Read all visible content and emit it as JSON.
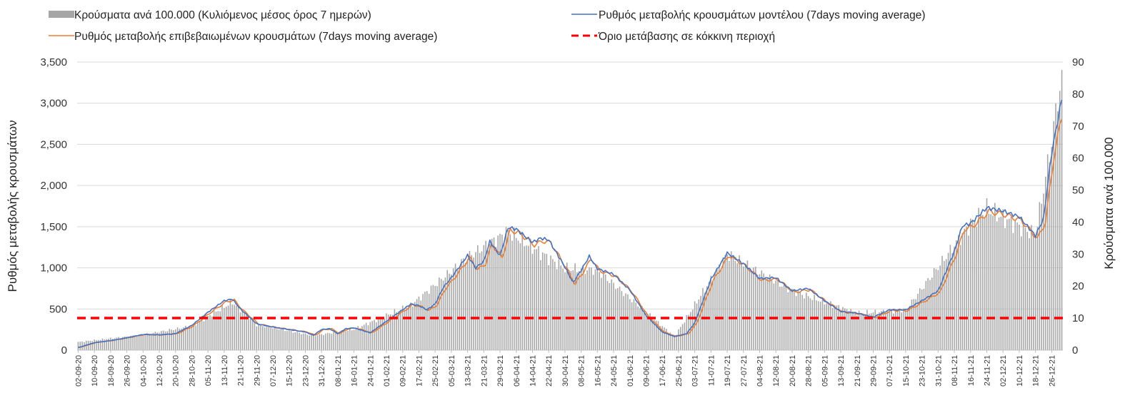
{
  "chart_data": {
    "type": "bar+line",
    "legend": {
      "position": "top",
      "entries": [
        {
          "key": "bars",
          "label": "Κρούσματα ανά 100.000 (Κυλιόμενος μέσος όρος 7 ημερών)",
          "color": "#a6a6a6",
          "marker": "bar"
        },
        {
          "key": "model",
          "label": "Ρυθμός μεταβολής κρουσμάτων μοντέλου (7days moving average)",
          "color": "#4472c4",
          "marker": "line"
        },
        {
          "key": "confirmed",
          "label": "Ρυθμός μεταβολής επιβεβαιωμένων κρουσμάτων (7days moving average)",
          "color": "#ed7d31",
          "marker": "line"
        },
        {
          "key": "threshold",
          "label": "Όριο μετάβασης σε κόκκινη περιοχή",
          "color": "#ff0000",
          "marker": "dash"
        }
      ]
    },
    "y_left": {
      "label": "Ρυθμός μεταβολής κρουσμάτων",
      "ylim": [
        0,
        3500
      ],
      "ticks": [
        "0",
        "500",
        "1,000",
        "1,500",
        "2,000",
        "2,500",
        "3,000",
        "3,500"
      ]
    },
    "y_right": {
      "label": "Κρούσματα ανά 100.000",
      "ylim": [
        0,
        90
      ],
      "ticks": [
        "0",
        "10",
        "20",
        "30",
        "40",
        "50",
        "60",
        "70",
        "80",
        "90"
      ]
    },
    "grid": "horizontal",
    "x_ticks": [
      "02-09-20",
      "10-09-20",
      "18-09-20",
      "26-09-20",
      "04-10-20",
      "12-10-20",
      "20-10-20",
      "28-10-20",
      "05-11-20",
      "13-11-20",
      "21-11-20",
      "29-11-20",
      "07-12-20",
      "15-12-20",
      "23-12-20",
      "31-12-20",
      "08-01-21",
      "16-01-21",
      "24-01-21",
      "01-02-21",
      "09-02-21",
      "17-02-21",
      "25-02-21",
      "05-03-21",
      "13-03-21",
      "21-03-21",
      "29-03-21",
      "06-04-21",
      "14-04-21",
      "22-04-21",
      "30-04-21",
      "08-05-21",
      "16-05-21",
      "24-05-21",
      "01-06-21",
      "09-06-21",
      "17-06-21",
      "25-06-21",
      "03-07-21",
      "11-07-21",
      "19-07-21",
      "27-07-21",
      "04-08-21",
      "12-08-21",
      "20-08-21",
      "28-08-21",
      "05-09-21",
      "13-09-21",
      "21-09-21",
      "29-09-21",
      "07-10-21",
      "15-10-21",
      "23-10-21",
      "31-10-21",
      "08-11-21",
      "16-11-21",
      "24-11-21",
      "02-12-21",
      "10-12-21",
      "18-12-21",
      "26-12-21"
    ],
    "x_start": "2020-09-02",
    "x_end": "2021-12-31",
    "threshold_value": 390,
    "model_keypoints": [
      [
        "2020-09-02",
        30
      ],
      [
        "2020-09-10",
        90
      ],
      [
        "2020-09-18",
        115
      ],
      [
        "2020-09-26",
        150
      ],
      [
        "2020-10-04",
        190
      ],
      [
        "2020-10-12",
        185
      ],
      [
        "2020-10-20",
        200
      ],
      [
        "2020-10-28",
        300
      ],
      [
        "2020-11-05",
        460
      ],
      [
        "2020-11-13",
        600
      ],
      [
        "2020-11-17",
        620
      ],
      [
        "2020-11-21",
        500
      ],
      [
        "2020-11-29",
        320
      ],
      [
        "2020-12-07",
        280
      ],
      [
        "2020-12-15",
        250
      ],
      [
        "2020-12-23",
        220
      ],
      [
        "2020-12-27",
        180
      ],
      [
        "2020-12-31",
        250
      ],
      [
        "2021-01-04",
        260
      ],
      [
        "2021-01-08",
        200
      ],
      [
        "2021-01-12",
        260
      ],
      [
        "2021-01-16",
        270
      ],
      [
        "2021-01-24",
        210
      ],
      [
        "2021-02-01",
        350
      ],
      [
        "2021-02-09",
        490
      ],
      [
        "2021-02-13",
        560
      ],
      [
        "2021-02-17",
        540
      ],
      [
        "2021-02-21",
        490
      ],
      [
        "2021-02-25",
        560
      ],
      [
        "2021-03-01",
        760
      ],
      [
        "2021-03-05",
        880
      ],
      [
        "2021-03-13",
        1150
      ],
      [
        "2021-03-17",
        1000
      ],
      [
        "2021-03-21",
        1080
      ],
      [
        "2021-03-24",
        1320
      ],
      [
        "2021-03-29",
        1150
      ],
      [
        "2021-04-02",
        1490
      ],
      [
        "2021-04-06",
        1470
      ],
      [
        "2021-04-14",
        1310
      ],
      [
        "2021-04-18",
        1360
      ],
      [
        "2021-04-22",
        1340
      ],
      [
        "2021-04-30",
        1010
      ],
      [
        "2021-05-04",
        820
      ],
      [
        "2021-05-08",
        970
      ],
      [
        "2021-05-12",
        1140
      ],
      [
        "2021-05-16",
        990
      ],
      [
        "2021-05-24",
        920
      ],
      [
        "2021-06-01",
        730
      ],
      [
        "2021-06-09",
        420
      ],
      [
        "2021-06-17",
        220
      ],
      [
        "2021-06-23",
        165
      ],
      [
        "2021-06-29",
        200
      ],
      [
        "2021-07-03",
        330
      ],
      [
        "2021-07-11",
        860
      ],
      [
        "2021-07-19",
        1180
      ],
      [
        "2021-07-27",
        1050
      ],
      [
        "2021-08-04",
        870
      ],
      [
        "2021-08-12",
        880
      ],
      [
        "2021-08-20",
        720
      ],
      [
        "2021-08-28",
        750
      ],
      [
        "2021-09-05",
        600
      ],
      [
        "2021-09-13",
        470
      ],
      [
        "2021-09-21",
        450
      ],
      [
        "2021-09-29",
        400
      ],
      [
        "2021-10-07",
        490
      ],
      [
        "2021-10-15",
        490
      ],
      [
        "2021-10-23",
        600
      ],
      [
        "2021-10-31",
        720
      ],
      [
        "2021-11-08",
        1200
      ],
      [
        "2021-11-12",
        1510
      ],
      [
        "2021-11-16",
        1540
      ],
      [
        "2021-11-24",
        1730
      ],
      [
        "2021-12-02",
        1690
      ],
      [
        "2021-12-10",
        1620
      ],
      [
        "2021-12-18",
        1390
      ],
      [
        "2021-12-22",
        1600
      ],
      [
        "2021-12-26",
        2400
      ],
      [
        "2021-12-31",
        3050
      ]
    ],
    "bars_keypoints": [
      [
        "2020-09-02",
        2.5
      ],
      [
        "2020-10-04",
        4.8
      ],
      [
        "2020-10-28",
        7.5
      ],
      [
        "2020-11-17",
        15.0
      ],
      [
        "2020-11-29",
        8.0
      ],
      [
        "2020-12-27",
        4.5
      ],
      [
        "2021-01-16",
        6.5
      ],
      [
        "2021-02-13",
        14.0
      ],
      [
        "2021-03-13",
        29.0
      ],
      [
        "2021-04-02",
        37.0
      ],
      [
        "2021-04-30",
        25.5
      ],
      [
        "2021-05-16",
        25.0
      ],
      [
        "2021-06-23",
        4.2
      ],
      [
        "2021-07-19",
        30.0
      ],
      [
        "2021-08-20",
        18.5
      ],
      [
        "2021-09-21",
        11.5
      ],
      [
        "2021-10-15",
        12.5
      ],
      [
        "2021-11-16",
        39.5
      ],
      [
        "2021-11-24",
        44.0
      ],
      [
        "2021-12-18",
        36.0
      ],
      [
        "2021-12-26",
        65.0
      ],
      [
        "2021-12-29",
        79.0
      ],
      [
        "2021-12-31",
        84.0
      ]
    ]
  }
}
